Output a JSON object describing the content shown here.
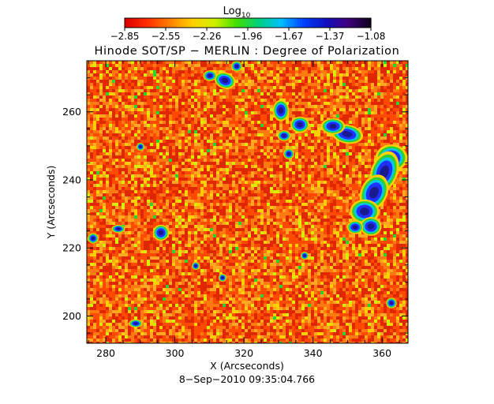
{
  "colorbar": {
    "label_main": "Log",
    "label_sub": "10",
    "ticks": [
      "−2.85",
      "−2.55",
      "−2.26",
      "−1.96",
      "−1.67",
      "−1.37",
      "−1.08"
    ],
    "colors": [
      "#e00000",
      "#ff3000",
      "#ff8000",
      "#ffd000",
      "#d0f000",
      "#40e000",
      "#00d080",
      "#00c0ff",
      "#0040ff",
      "#1010c0",
      "#400080",
      "#100020"
    ]
  },
  "title": "Hinode SOT/SP − MERLIN : Degree of Polarization",
  "x_axis": {
    "label": "X (Arcseconds)",
    "tick_labels": [
      "280",
      "300",
      "320",
      "340",
      "360"
    ]
  },
  "y_axis": {
    "label": "Y (Arcseconds)",
    "tick_labels": [
      "200",
      "220",
      "240",
      "260"
    ]
  },
  "timestamp": "8−Sep−2010 09:35:04.766",
  "map": {
    "x_range": [
      274.5,
      367.5
    ],
    "y_range": [
      192,
      275
    ],
    "palette": {
      "background": "#f06020",
      "noise": [
        "#e02800",
        "#ff4a00",
        "#ff7a10",
        "#ffa820",
        "#ffd000",
        "#d8ee00"
      ],
      "plage_rim": "#30d030",
      "plage_edge": "#00c8e8",
      "plage_core": "#2030ff",
      "plage_dark": "#1a1a90"
    }
  }
}
